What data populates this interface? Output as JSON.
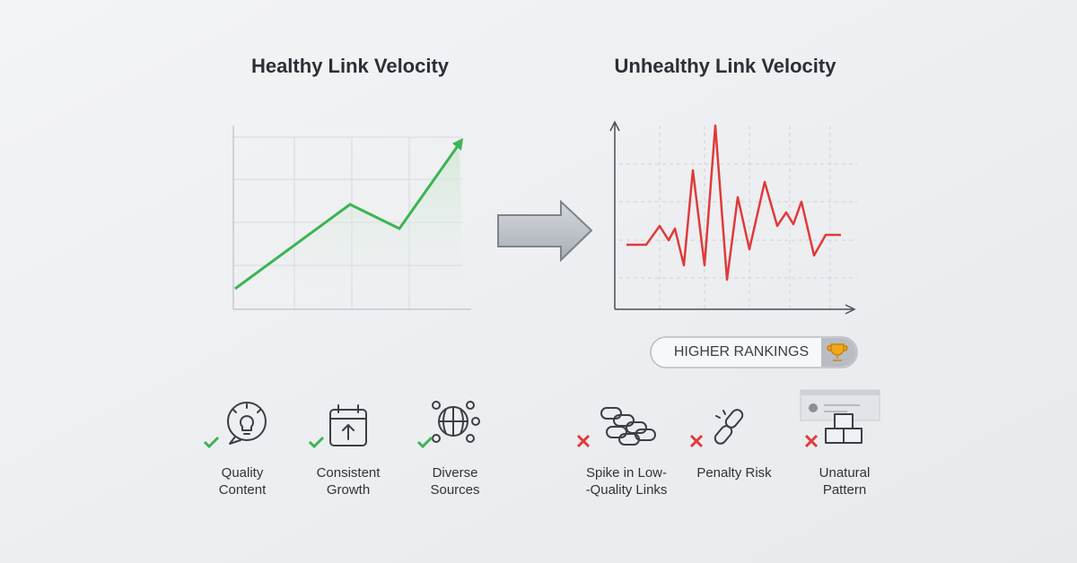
{
  "left": {
    "title": "Healthy Link Velocity",
    "items": [
      {
        "lines": [
          "Quality",
          "Content"
        ]
      },
      {
        "lines": [
          "Consistent",
          "Growth"
        ]
      },
      {
        "lines": [
          "Diverse",
          "Sources"
        ]
      }
    ]
  },
  "right": {
    "title": "Unhealthy Link Velocity",
    "badge": "HIGHER RANKINGS",
    "items": [
      {
        "lines": [
          "Spike in Low-",
          "-Quality Links"
        ]
      },
      {
        "lines": [
          "Penalty Risk"
        ]
      },
      {
        "lines": [
          "Unatural",
          "Pattern"
        ]
      }
    ]
  }
}
